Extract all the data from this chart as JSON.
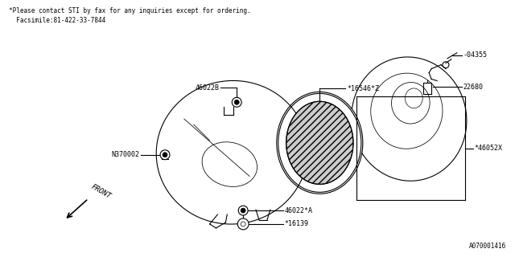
{
  "bg_color": "#ffffff",
  "line_color": "#000000",
  "fig_width": 6.4,
  "fig_height": 3.2,
  "header_line1": "*Please contact STI by fax for any inquiries except for ordering.",
  "header_line2": "  Facsimile:81-422-33-7844",
  "footer_label": "A070001416",
  "part_labels": {
    "04355": {
      "text": "-04355"
    },
    "22680": {
      "text": "22680"
    },
    "16546Z": {
      "text": "*16546*Z"
    },
    "46022B": {
      "text": "46022B"
    },
    "N370002": {
      "text": "N370002"
    },
    "46052X": {
      "text": "*46052X"
    },
    "46022A": {
      "text": "46022*A"
    },
    "16139": {
      "text": "*16139"
    },
    "FRONT": {
      "text": "FRONT"
    }
  }
}
